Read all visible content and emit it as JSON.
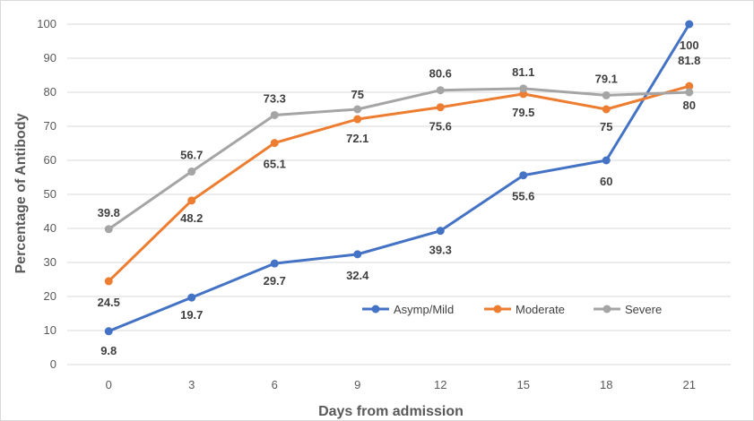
{
  "chart_data": {
    "type": "line",
    "title": "",
    "xlabel": "Days from admission",
    "ylabel": "Percentage of Antibody",
    "x": [
      0,
      3,
      6,
      9,
      12,
      15,
      18,
      21
    ],
    "ylim": [
      0,
      100
    ],
    "yticks": [
      0,
      10,
      20,
      30,
      40,
      50,
      60,
      70,
      80,
      90,
      100
    ],
    "grid": true,
    "legend_position": "bottom-right",
    "series": [
      {
        "name": "Asymp/Mild",
        "color": "#4472c4",
        "values": [
          9.8,
          19.7,
          29.7,
          32.4,
          39.3,
          55.6,
          60,
          100
        ]
      },
      {
        "name": "Moderate",
        "color": "#ed7d31",
        "values": [
          24.5,
          48.2,
          65.1,
          72.1,
          75.6,
          79.5,
          75,
          81.8
        ]
      },
      {
        "name": "Severe",
        "color": "#a5a5a5",
        "values": [
          39.8,
          56.7,
          73.3,
          75,
          80.6,
          81.1,
          79.1,
          80
        ]
      }
    ]
  }
}
